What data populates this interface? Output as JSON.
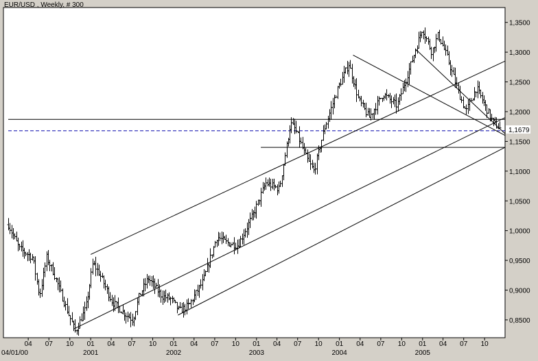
{
  "chart_data": {
    "type": "ohlc",
    "title": "EUR/USD , Weekly, # 300",
    "price_label": "1,1679",
    "ylim": [
      0.82,
      1.375
    ],
    "y_ticks": [
      0.85,
      0.9,
      0.95,
      1.0,
      1.05,
      1.1,
      1.15,
      1.2,
      1.25,
      1.3,
      1.35
    ],
    "y_tick_labels": [
      "0,8500",
      "0,9000",
      "0,9500",
      "1,0000",
      "1,0500",
      "1,1000",
      "1,1500",
      "1,2000",
      "1,2500",
      "1,3000",
      "1,3500"
    ],
    "x_start": "2000-01-04",
    "x_end": "2005-12-12",
    "month_ticks": [
      {
        "date": "2000-04-01",
        "label": "04"
      },
      {
        "date": "2000-07-01",
        "label": "07"
      },
      {
        "date": "2000-10-01",
        "label": "10"
      },
      {
        "date": "2001-01-01",
        "label": "01"
      },
      {
        "date": "2001-04-01",
        "label": "04"
      },
      {
        "date": "2001-07-01",
        "label": "07"
      },
      {
        "date": "2001-10-01",
        "label": "10"
      },
      {
        "date": "2002-01-01",
        "label": "01"
      },
      {
        "date": "2002-04-01",
        "label": "04"
      },
      {
        "date": "2002-07-01",
        "label": "07"
      },
      {
        "date": "2002-10-01",
        "label": "10"
      },
      {
        "date": "2003-01-01",
        "label": "01"
      },
      {
        "date": "2003-04-01",
        "label": "04"
      },
      {
        "date": "2003-07-01",
        "label": "07"
      },
      {
        "date": "2003-10-01",
        "label": "10"
      },
      {
        "date": "2004-01-01",
        "label": "01"
      },
      {
        "date": "2004-04-01",
        "label": "04"
      },
      {
        "date": "2004-07-01",
        "label": "07"
      },
      {
        "date": "2004-10-01",
        "label": "10"
      },
      {
        "date": "2005-01-01",
        "label": "01"
      },
      {
        "date": "2005-04-01",
        "label": "04"
      },
      {
        "date": "2005-07-01",
        "label": "07"
      },
      {
        "date": "2005-10-01",
        "label": "10"
      }
    ],
    "year_labels": [
      {
        "date": "2000-01-04",
        "label": "04/01/00"
      },
      {
        "date": "2001-01-01",
        "label": "2001"
      },
      {
        "date": "2002-01-01",
        "label": "2002"
      },
      {
        "date": "2003-01-01",
        "label": "2003"
      },
      {
        "date": "2004-01-01",
        "label": "2004"
      },
      {
        "date": "2005-01-01",
        "label": "2005"
      }
    ],
    "anchors": [
      [
        "2000-01-04",
        1.01
      ],
      [
        "2000-02-20",
        0.97
      ],
      [
        "2000-04-20",
        0.955
      ],
      [
        "2000-05-20",
        0.89
      ],
      [
        "2000-06-20",
        0.955
      ],
      [
        "2000-07-20",
        0.93
      ],
      [
        "2000-09-05",
        0.88
      ],
      [
        "2000-10-25",
        0.83
      ],
      [
        "2000-12-10",
        0.87
      ],
      [
        "2001-01-10",
        0.945
      ],
      [
        "2001-02-05",
        0.93
      ],
      [
        "2001-04-05",
        0.88
      ],
      [
        "2001-06-01",
        0.86
      ],
      [
        "2001-07-05",
        0.85
      ],
      [
        "2001-08-01",
        0.89
      ],
      [
        "2001-09-10",
        0.92
      ],
      [
        "2001-11-10",
        0.89
      ],
      [
        "2001-12-20",
        0.885
      ],
      [
        "2002-01-25",
        0.865
      ],
      [
        "2002-03-10",
        0.875
      ],
      [
        "2002-05-10",
        0.915
      ],
      [
        "2002-07-10",
        0.99
      ],
      [
        "2002-08-20",
        0.98
      ],
      [
        "2002-10-10",
        0.975
      ],
      [
        "2002-12-20",
        1.03
      ],
      [
        "2003-02-10",
        1.08
      ],
      [
        "2003-04-10",
        1.07
      ],
      [
        "2003-05-30",
        1.18
      ],
      [
        "2003-06-20",
        1.17
      ],
      [
        "2003-08-10",
        1.12
      ],
      [
        "2003-09-10",
        1.1
      ],
      [
        "2003-10-25",
        1.17
      ],
      [
        "2003-12-25",
        1.24
      ],
      [
        "2004-02-10",
        1.28
      ],
      [
        "2004-03-25",
        1.22
      ],
      [
        "2004-05-10",
        1.19
      ],
      [
        "2004-07-10",
        1.23
      ],
      [
        "2004-09-10",
        1.21
      ],
      [
        "2004-11-10",
        1.28
      ],
      [
        "2004-12-30",
        1.34
      ],
      [
        "2005-02-10",
        1.3
      ],
      [
        "2005-03-10",
        1.33
      ],
      [
        "2005-04-20",
        1.29
      ],
      [
        "2005-06-10",
        1.23
      ],
      [
        "2005-07-10",
        1.2
      ],
      [
        "2005-08-25",
        1.24
      ],
      [
        "2005-09-20",
        1.22
      ],
      [
        "2005-10-15",
        1.2
      ],
      [
        "2005-11-10",
        1.18
      ],
      [
        "2005-12-12",
        1.17
      ]
    ],
    "horizontal_lines": [
      {
        "y": 1.187,
        "from": "2000-01-04",
        "style": "solid"
      },
      {
        "y": 1.1679,
        "from": "2000-01-04",
        "style": "dashed"
      },
      {
        "y": 1.14,
        "from": "2003-01-20",
        "style": "solid"
      }
    ],
    "trend_lines": [
      {
        "from": [
          "2001-01-01",
          0.96
        ],
        "to": [
          "2005-12-31",
          1.285
        ]
      },
      {
        "from": [
          "2000-10-20",
          0.835
        ],
        "to": [
          "2005-12-31",
          1.19
        ]
      },
      {
        "from": [
          "2002-01-20",
          0.858
        ],
        "to": [
          "2005-12-31",
          1.14
        ]
      },
      {
        "from": [
          "2004-03-01",
          1.295
        ],
        "to": [
          "2005-12-31",
          1.16
        ]
      },
      {
        "from": [
          "2004-12-01",
          1.305
        ],
        "to": [
          "2005-12-31",
          1.163
        ]
      }
    ],
    "colors": {
      "plot_bg": "#ffffff",
      "frame_bg": "#d4d0c8",
      "bars": "#000000",
      "price_line": "#0000aa",
      "price_label": "#0000aa"
    },
    "grid": false
  }
}
